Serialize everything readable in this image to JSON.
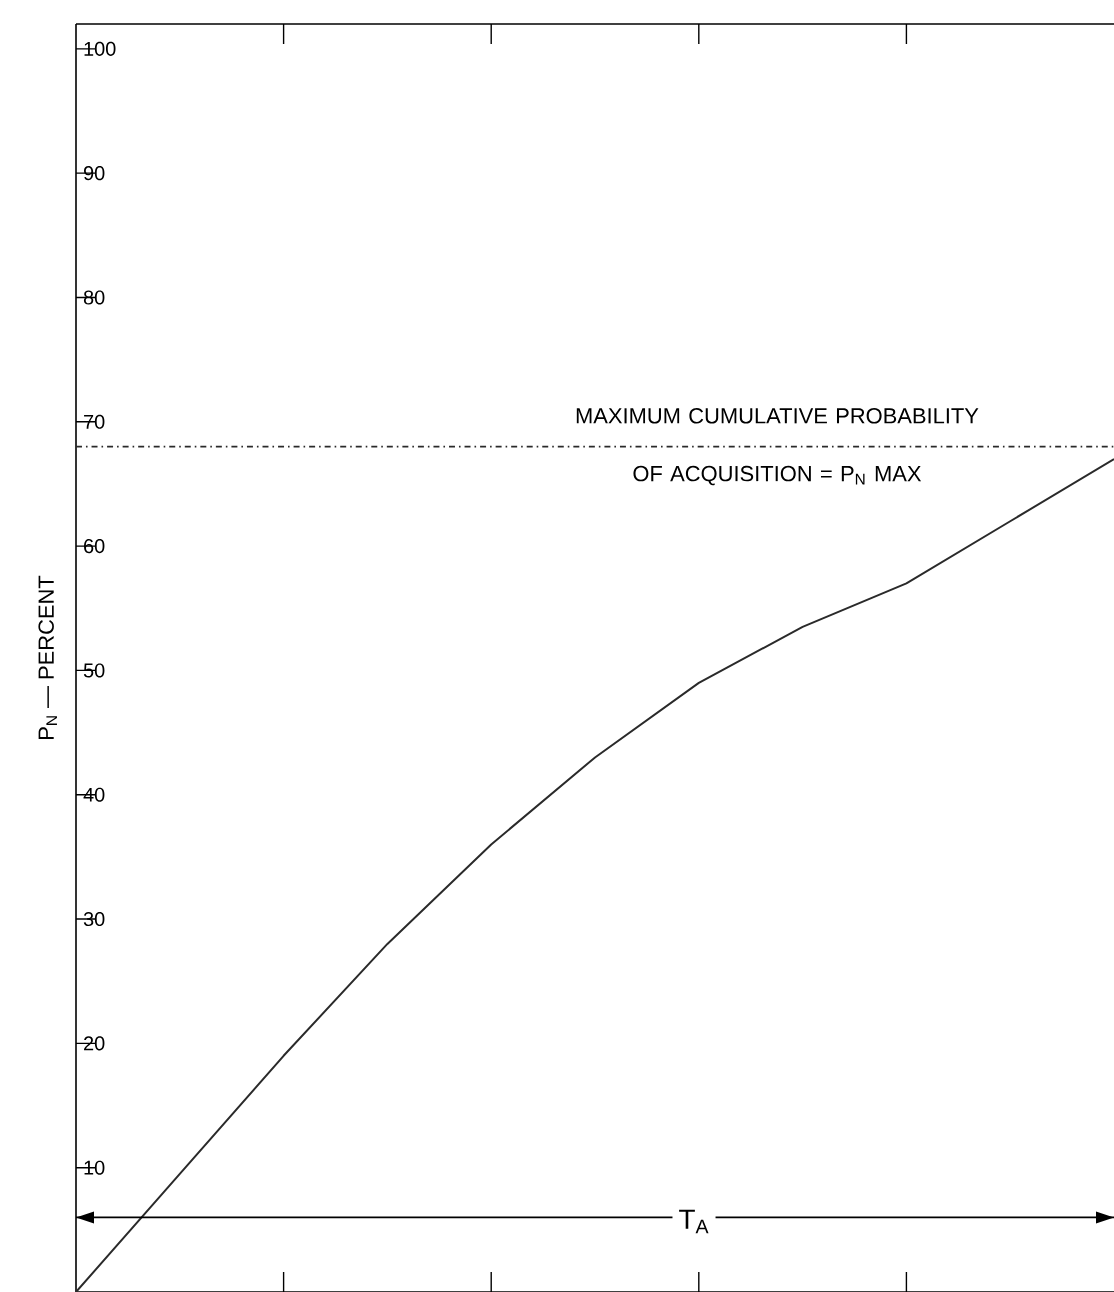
{
  "chart_data": {
    "type": "line",
    "ylabel": "P$_{N}$ — PERCENT",
    "categories": [
      null,
      null,
      null,
      null,
      null,
      null,
      null,
      null,
      null,
      null,
      null
    ],
    "series": [
      {
        "color": "#2a2a2a",
        "values": [
          0,
          9.5,
          19,
          28,
          36,
          43,
          49,
          53.5,
          57,
          62,
          67
        ]
      }
    ],
    "ylim": [
      0,
      102
    ],
    "yticks": [
      10,
      20,
      30,
      40,
      50,
      60,
      70,
      80,
      90,
      100
    ],
    "ref_lines": [
      {
        "axis": "y",
        "value": 68,
        "label": "MAXIMUM CUMULATIVE PROBABILITY OF ACQUISITION = P$_{N}$ MAX",
        "line_style": "dashdot",
        "color": "#2a2a2a"
      },
      {
        "axis": "y",
        "value": 6,
        "label": "T$_{A}$",
        "line_style": "solid",
        "color": "#000000"
      }
    ],
    "grid": false,
    "marker": "none",
    "line_style": "solid"
  }
}
